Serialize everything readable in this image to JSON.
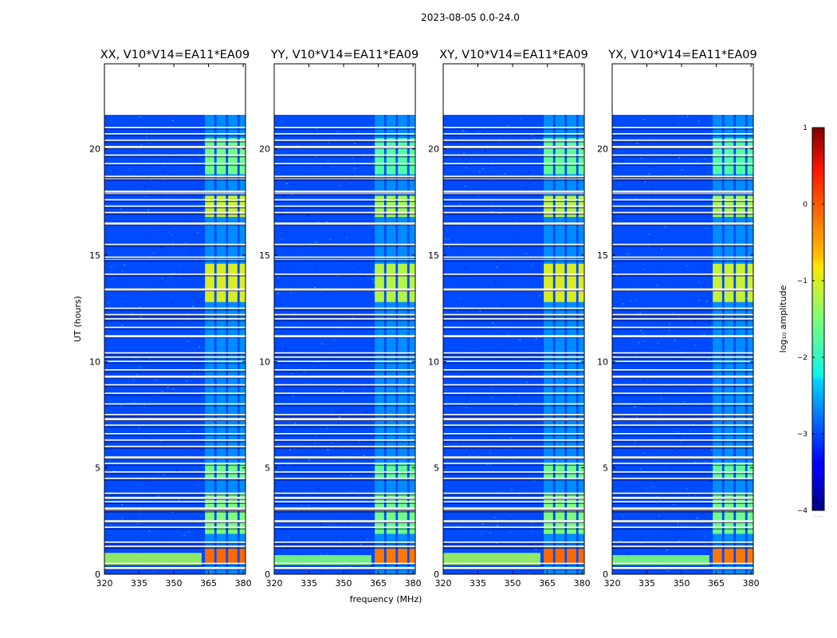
{
  "suptitle": "2023-08-05 0.0-24.0",
  "chart_data": {
    "type": "heatmap",
    "shared": {
      "xlabel": "frequency (MHz)",
      "ylabel": "UT (hours)",
      "xlim": [
        320,
        381
      ],
      "ylim": [
        0,
        24
      ],
      "xticks": [
        320,
        335,
        350,
        365,
        380
      ],
      "yticks": [
        0,
        5,
        10,
        15,
        20
      ],
      "data_time_range": [
        0,
        21.6
      ],
      "band_edges_mhz": [
        363.5,
        367.5,
        368.5,
        372.5,
        373.5,
        377.5,
        378.5,
        382.5
      ],
      "flagged_rows_hours": [
        0.3,
        0.5,
        1.3,
        1.5,
        2.2,
        2.5,
        3.0,
        3.05,
        3.1,
        3.4,
        3.6,
        3.8,
        4.5,
        4.8,
        5.2,
        5.5,
        6.0,
        6.3,
        6.6,
        7.0,
        7.3,
        7.5,
        8.0,
        8.5,
        8.9,
        9.3,
        9.6,
        10.0,
        10.2,
        10.4,
        11.2,
        11.6,
        12.0,
        12.2,
        12.5,
        13.4,
        14.1,
        14.8,
        14.9,
        15.5,
        16.5,
        17.0,
        17.3,
        17.6,
        17.9,
        18.0,
        18.6,
        18.7,
        19.3,
        19.7,
        20.1,
        20.4,
        20.7,
        21.0
      ]
    },
    "panels": [
      {
        "title": "XX, V10*V14=EA11*EA09",
        "rfi_band_log10": [
          [
            0.5,
            1.2,
            -0.1
          ],
          [
            1.9,
            3.8,
            -1.5
          ],
          [
            4.5,
            5.2,
            -1.6
          ],
          [
            12.8,
            14.6,
            -1.0
          ],
          [
            16.8,
            17.8,
            -1.1
          ],
          [
            18.8,
            20.5,
            -1.6
          ]
        ],
        "low_freq_rfi_log10": [
          [
            0.4,
            1.0,
            -1.3
          ]
        ]
      },
      {
        "title": "YY, V10*V14=EA11*EA09",
        "rfi_band_log10": [
          [
            0.5,
            1.2,
            -0.2
          ],
          [
            1.9,
            3.8,
            -1.6
          ],
          [
            4.5,
            5.2,
            -1.7
          ],
          [
            12.8,
            14.6,
            -1.2
          ],
          [
            16.8,
            17.8,
            -1.3
          ],
          [
            18.8,
            20.5,
            -1.8
          ]
        ],
        "low_freq_rfi_log10": [
          [
            0.4,
            0.9,
            -1.5
          ]
        ]
      },
      {
        "title": "XY, V10*V14=EA11*EA09",
        "rfi_band_log10": [
          [
            0.5,
            1.2,
            -0.1
          ],
          [
            1.9,
            3.8,
            -1.5
          ],
          [
            4.5,
            5.2,
            -1.6
          ],
          [
            12.8,
            14.6,
            -1.0
          ],
          [
            16.8,
            17.8,
            -1.2
          ],
          [
            18.8,
            20.5,
            -1.7
          ]
        ],
        "low_freq_rfi_log10": [
          [
            0.4,
            1.0,
            -1.3
          ]
        ]
      },
      {
        "title": "YX, V10*V14=EA11*EA09",
        "rfi_band_log10": [
          [
            0.5,
            1.2,
            -0.2
          ],
          [
            1.9,
            3.8,
            -1.6
          ],
          [
            4.5,
            5.2,
            -1.7
          ],
          [
            12.8,
            14.6,
            -1.1
          ],
          [
            16.8,
            17.8,
            -1.3
          ],
          [
            18.8,
            20.5,
            -1.8
          ]
        ],
        "low_freq_rfi_log10": [
          [
            0.4,
            0.9,
            -1.5
          ]
        ]
      }
    ],
    "colorbar": {
      "label": "log₁₀ amplitude",
      "range": [
        -4,
        1
      ],
      "ticks": [
        "1",
        "0",
        "−1",
        "−2",
        "−3",
        "−4"
      ],
      "colormap": "jet",
      "underflow_note": "......"
    }
  }
}
